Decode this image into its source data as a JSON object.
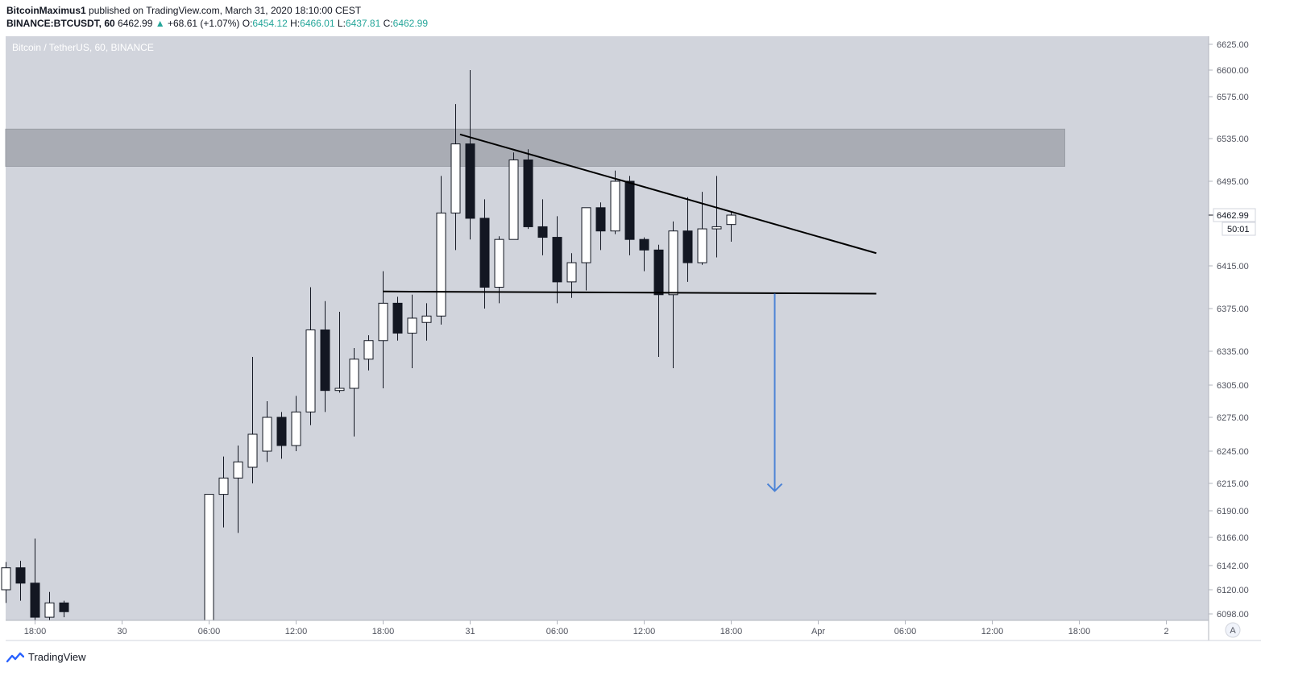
{
  "header": {
    "author": "BitcoinMaximus1",
    "published_text": "published on TradingView.com, March 31, 2020 18:10:00 CEST",
    "symbol": "BINANCE:BTCUSDT, 60",
    "last_price": "6462.99",
    "change": "+68.61 (+1.07%)",
    "open_label": "O:",
    "open": "6454.12",
    "high_label": "H:",
    "high": "6466.01",
    "low_label": "L:",
    "low": "6437.81",
    "close_label": "C:",
    "close": "6462.99"
  },
  "chart_data": {
    "type": "candlestick",
    "title": "Bitcoin / TetherUS, 60, BINANCE",
    "price_ticks": [
      "6625.00",
      "6600.00",
      "6575.00",
      "6535.00",
      "6495.00",
      "6415.00",
      "6375.00",
      "6335.00",
      "6305.00",
      "6275.00",
      "6245.00",
      "6215.00",
      "6190.00",
      "6166.00",
      "6142.00",
      "6120.00",
      "6098.00"
    ],
    "time_ticks": [
      {
        "label": "18:00",
        "t": 0
      },
      {
        "label": "30",
        "t": 6
      },
      {
        "label": "06:00",
        "t": 12
      },
      {
        "label": "12:00",
        "t": 18
      },
      {
        "label": "18:00",
        "t": 24
      },
      {
        "label": "31",
        "t": 30
      },
      {
        "label": "06:00",
        "t": 36
      },
      {
        "label": "12:00",
        "t": 42
      },
      {
        "label": "18:00",
        "t": 48
      },
      {
        "label": "Apr",
        "t": 54
      },
      {
        "label": "06:00",
        "t": 60
      },
      {
        "label": "12:00",
        "t": 66
      },
      {
        "label": "18:00",
        "t": 72
      },
      {
        "label": "2",
        "t": 78
      }
    ],
    "candles": [
      {
        "t": -2,
        "o": 6120,
        "h": 6145,
        "l": 6108,
        "c": 6140
      },
      {
        "t": -1,
        "o": 6140,
        "h": 6146,
        "l": 6110,
        "c": 6126
      },
      {
        "t": 0,
        "o": 6126,
        "h": 6165,
        "l": 6090,
        "c": 6095
      },
      {
        "t": 1,
        "o": 6095,
        "h": 6118,
        "l": 6090,
        "c": 6108
      },
      {
        "t": 2,
        "o": 6108,
        "h": 6110,
        "l": 6095,
        "c": 6100
      },
      {
        "t": 12,
        "o": 6090,
        "h": 6205,
        "l": 6090,
        "c": 6205
      },
      {
        "t": 13,
        "o": 6205,
        "h": 6240,
        "l": 6175,
        "c": 6220
      },
      {
        "t": 14,
        "o": 6220,
        "h": 6250,
        "l": 6170,
        "c": 6235
      },
      {
        "t": 15,
        "o": 6230,
        "h": 6330,
        "l": 6215,
        "c": 6260
      },
      {
        "t": 16,
        "o": 6245,
        "h": 6290,
        "l": 6235,
        "c": 6275
      },
      {
        "t": 17,
        "o": 6275,
        "h": 6280,
        "l": 6238,
        "c": 6250
      },
      {
        "t": 18,
        "o": 6250,
        "h": 6295,
        "l": 6245,
        "c": 6280
      },
      {
        "t": 19,
        "o": 6280,
        "h": 6395,
        "l": 6268,
        "c": 6355
      },
      {
        "t": 20,
        "o": 6355,
        "h": 6382,
        "l": 6280,
        "c": 6300
      },
      {
        "t": 21,
        "o": 6300,
        "h": 6372,
        "l": 6298,
        "c": 6302
      },
      {
        "t": 22,
        "o": 6302,
        "h": 6338,
        "l": 6258,
        "c": 6328
      },
      {
        "t": 23,
        "o": 6328,
        "h": 6350,
        "l": 6318,
        "c": 6345
      },
      {
        "t": 24,
        "o": 6345,
        "h": 6410,
        "l": 6302,
        "c": 6380
      },
      {
        "t": 25,
        "o": 6380,
        "h": 6386,
        "l": 6345,
        "c": 6352
      },
      {
        "t": 26,
        "o": 6352,
        "h": 6388,
        "l": 6320,
        "c": 6366
      },
      {
        "t": 27,
        "o": 6362,
        "h": 6380,
        "l": 6345,
        "c": 6368
      },
      {
        "t": 28,
        "o": 6368,
        "h": 6500,
        "l": 6360,
        "c": 6465
      },
      {
        "t": 29,
        "o": 6465,
        "h": 6568,
        "l": 6430,
        "c": 6530
      },
      {
        "t": 30,
        "o": 6530,
        "h": 6600,
        "l": 6440,
        "c": 6460
      },
      {
        "t": 31,
        "o": 6460,
        "h": 6478,
        "l": 6375,
        "c": 6395
      },
      {
        "t": 32,
        "o": 6395,
        "h": 6443,
        "l": 6380,
        "c": 6440
      },
      {
        "t": 33,
        "o": 6440,
        "h": 6522,
        "l": 6440,
        "c": 6515
      },
      {
        "t": 34,
        "o": 6515,
        "h": 6525,
        "l": 6450,
        "c": 6452
      },
      {
        "t": 35,
        "o": 6452,
        "h": 6478,
        "l": 6425,
        "c": 6442
      },
      {
        "t": 36,
        "o": 6442,
        "h": 6462,
        "l": 6380,
        "c": 6400
      },
      {
        "t": 37,
        "o": 6400,
        "h": 6427,
        "l": 6385,
        "c": 6418
      },
      {
        "t": 38,
        "o": 6418,
        "h": 6470,
        "l": 6392,
        "c": 6470
      },
      {
        "t": 39,
        "o": 6470,
        "h": 6475,
        "l": 6430,
        "c": 6448
      },
      {
        "t": 40,
        "o": 6448,
        "h": 6505,
        "l": 6445,
        "c": 6495
      },
      {
        "t": 41,
        "o": 6495,
        "h": 6500,
        "l": 6425,
        "c": 6440
      },
      {
        "t": 42,
        "o": 6440,
        "h": 6442,
        "l": 6410,
        "c": 6430
      },
      {
        "t": 43,
        "o": 6430,
        "h": 6435,
        "l": 6330,
        "c": 6388
      },
      {
        "t": 44,
        "o": 6388,
        "h": 6457,
        "l": 6320,
        "c": 6448
      },
      {
        "t": 45,
        "o": 6448,
        "h": 6480,
        "l": 6400,
        "c": 6418
      },
      {
        "t": 46,
        "o": 6418,
        "h": 6485,
        "l": 6416,
        "c": 6450
      },
      {
        "t": 47,
        "o": 6450,
        "h": 6500,
        "l": 6423,
        "c": 6452
      },
      {
        "t": 48,
        "o": 6454.12,
        "h": 6466.01,
        "l": 6437.81,
        "c": 6462.99
      }
    ],
    "resistance_zone": {
      "from_price": 6509,
      "to_price": 6544,
      "from_t": -3,
      "to_t": 71
    },
    "trendlines": [
      {
        "name": "descending-resistance",
        "t1": 29.3,
        "p1": 6539,
        "t2": 58,
        "p2": 6427
      },
      {
        "name": "horizontal-support",
        "t1": 24,
        "p1": 6391,
        "t2": 58,
        "p2": 6389
      }
    ],
    "target_arrow": {
      "t": 51,
      "from_price": 6389,
      "to_price": 6208
    },
    "last_price_label": "6462.99",
    "countdown_label": "50:01",
    "axis_corner_label": "A"
  },
  "footer": {
    "brand": "TradingView"
  },
  "colors": {
    "plot_bg": "#d1d4dc",
    "zone": "#a9acb4",
    "bull_fill": "#ffffff",
    "bear_fill": "#131722",
    "outline": "#131722",
    "arrow": "#4a82d6",
    "positive": "#26a69a"
  }
}
